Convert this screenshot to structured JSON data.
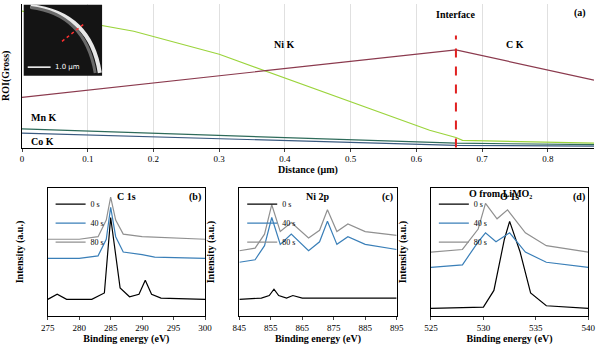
{
  "chart_data": [
    {
      "type": "line",
      "panel_label": "(a)",
      "x_label": "Distance (μm)",
      "y_label": "ROI(Gross)",
      "xlim": [
        0,
        0.87
      ],
      "xticks": [
        0,
        0.1,
        0.2,
        0.3,
        0.4,
        0.5,
        0.6,
        0.7,
        0.8
      ],
      "ylim": [
        0,
        100
      ],
      "yticks": [],
      "tick_labels": "x",
      "grid": true,
      "series": [
        {
          "name": "Ni K",
          "color": "#9bd43c",
          "line_style": "solid",
          "x": [
            0,
            0.17,
            0.3,
            0.5,
            0.62,
            0.66,
            0.67,
            0.87
          ],
          "values": [
            95,
            81,
            65,
            32,
            12,
            7,
            5,
            3
          ]
        },
        {
          "name": "C K",
          "color": "#8b3a4e",
          "line_style": "solid",
          "x": [
            0,
            0.66,
            0.87
          ],
          "values": [
            35,
            68,
            47
          ]
        },
        {
          "name": "Mn K",
          "color": "#2e6b5a",
          "line_style": "solid",
          "x": [
            0,
            0.66,
            0.87
          ],
          "values": [
            13,
            3,
            2
          ]
        },
        {
          "name": "Co K",
          "color": "#3a5a80",
          "line_style": "solid",
          "x": [
            0,
            0.66,
            0.87
          ],
          "values": [
            10,
            1.5,
            1
          ]
        }
      ],
      "annotations": [
        {
          "text": "Ni K",
          "x": 0.4,
          "y": 72
        },
        {
          "text": "C K",
          "x": 0.75,
          "y": 72
        },
        {
          "text": "Mn K",
          "x": 0.01,
          "y": 21
        },
        {
          "text": "Co K",
          "x": 0.01,
          "y": 4
        }
      ],
      "vlines": [
        {
          "x": 0.66,
          "text": "Interface",
          "color": "#e02020",
          "line_style": "dash"
        }
      ],
      "inset": {
        "scale_bar": "1.0 μm"
      }
    },
    {
      "type": "line",
      "title": "C 1s",
      "panel_label": "(b)",
      "x_label": "Binding energy (eV)",
      "y_label": "Intensity (a.u.)",
      "xlim": [
        275,
        300
      ],
      "xticks": [
        275,
        280,
        285,
        290,
        295,
        300
      ],
      "ylim": [
        0,
        100
      ],
      "yticks": [],
      "tick_labels": "x",
      "grid": false,
      "legend": "upper left",
      "series": [
        {
          "name": "0 s",
          "color": "#000000",
          "line_style": "solid",
          "x": [
            275,
            276.5,
            278,
            282,
            284,
            284.6,
            285,
            285.6,
            286.5,
            288,
            289.5,
            290.5,
            291.5,
            293,
            300
          ],
          "values": [
            13,
            17,
            13,
            13,
            18,
            50,
            77,
            55,
            22,
            15,
            17,
            28,
            17,
            14,
            13
          ]
        },
        {
          "name": "40 s",
          "color": "#3a7fb8",
          "line_style": "solid",
          "x": [
            275,
            280,
            283,
            284.3,
            285,
            285.8,
            287,
            290,
            292,
            300
          ],
          "values": [
            45,
            45,
            47,
            60,
            85,
            62,
            50,
            48,
            46,
            45
          ]
        },
        {
          "name": "80 s",
          "color": "#909090",
          "line_style": "solid",
          "x": [
            275,
            280,
            283,
            284.3,
            285,
            285.8,
            287,
            290,
            300
          ],
          "values": [
            60,
            60,
            62,
            75,
            93,
            75,
            64,
            62,
            60
          ]
        }
      ]
    },
    {
      "type": "line",
      "title": "Ni 2p",
      "panel_label": "(c)",
      "x_label": "Binding energy (eV)",
      "y_label": "Intensity (a.u.)",
      "xlim": [
        845,
        895
      ],
      "xticks": [
        845,
        855,
        865,
        875,
        885,
        895
      ],
      "ylim": [
        0,
        100
      ],
      "yticks": [],
      "tick_labels": "x",
      "grid": false,
      "legend": "upper left",
      "series": [
        {
          "name": "0 s",
          "color": "#000000",
          "line_style": "solid",
          "x": [
            845,
            852,
            854.5,
            856,
            857.5,
            860,
            862,
            865,
            875,
            885,
            895
          ],
          "values": [
            13,
            14,
            16,
            21,
            16,
            14,
            16,
            14,
            14,
            14,
            14
          ]
        },
        {
          "name": "40 s",
          "color": "#3a7fb8",
          "line_style": "solid",
          "x": [
            845,
            850,
            853,
            855.3,
            858,
            861.5,
            867,
            870.5,
            873,
            876,
            879.5,
            885,
            895
          ],
          "values": [
            42,
            44,
            55,
            77,
            56,
            64,
            51,
            58,
            74,
            56,
            62,
            56,
            52
          ]
        },
        {
          "name": "80 s",
          "color": "#909090",
          "line_style": "solid",
          "x": [
            845,
            850,
            853,
            855.3,
            858,
            861.5,
            867,
            870.5,
            873,
            876,
            879.5,
            885,
            895
          ],
          "values": [
            51,
            53,
            64,
            87,
            66,
            73,
            61,
            67,
            83,
            66,
            72,
            66,
            63
          ]
        }
      ]
    },
    {
      "type": "line",
      "title": "O 1s",
      "panel_label": "(d)",
      "x_label": "Binding energy (eV)",
      "y_label": "Intensity (a.u.)",
      "xlim": [
        525,
        540
      ],
      "xticks": [
        525,
        530,
        535,
        540
      ],
      "ylim": [
        0,
        100
      ],
      "yticks": [],
      "tick_labels": "x",
      "grid": false,
      "legend": "upper left",
      "series": [
        {
          "name": "0 s",
          "color": "#000000",
          "line_style": "solid",
          "x": [
            525,
            530,
            531,
            532,
            532.5,
            533.5,
            534.5,
            536,
            540
          ],
          "values": [
            6,
            7,
            20,
            60,
            74,
            50,
            18,
            8,
            6
          ]
        },
        {
          "name": "40 s",
          "color": "#3a7fb8",
          "line_style": "solid",
          "x": [
            525,
            528,
            529.5,
            530.2,
            531.2,
            532.5,
            534,
            536,
            540
          ],
          "values": [
            38,
            40,
            58,
            65,
            58,
            65,
            50,
            42,
            38
          ]
        },
        {
          "name": "80 s",
          "color": "#909090",
          "line_style": "solid",
          "x": [
            525,
            528,
            529.5,
            530.2,
            531.3,
            532.3,
            534,
            536,
            540
          ],
          "values": [
            50,
            52,
            68,
            88,
            76,
            83,
            65,
            55,
            50
          ]
        }
      ],
      "annotations": [
        {
          "text": "O from LiMO₂",
          "x": 531.6,
          "y": 96
        }
      ]
    }
  ]
}
